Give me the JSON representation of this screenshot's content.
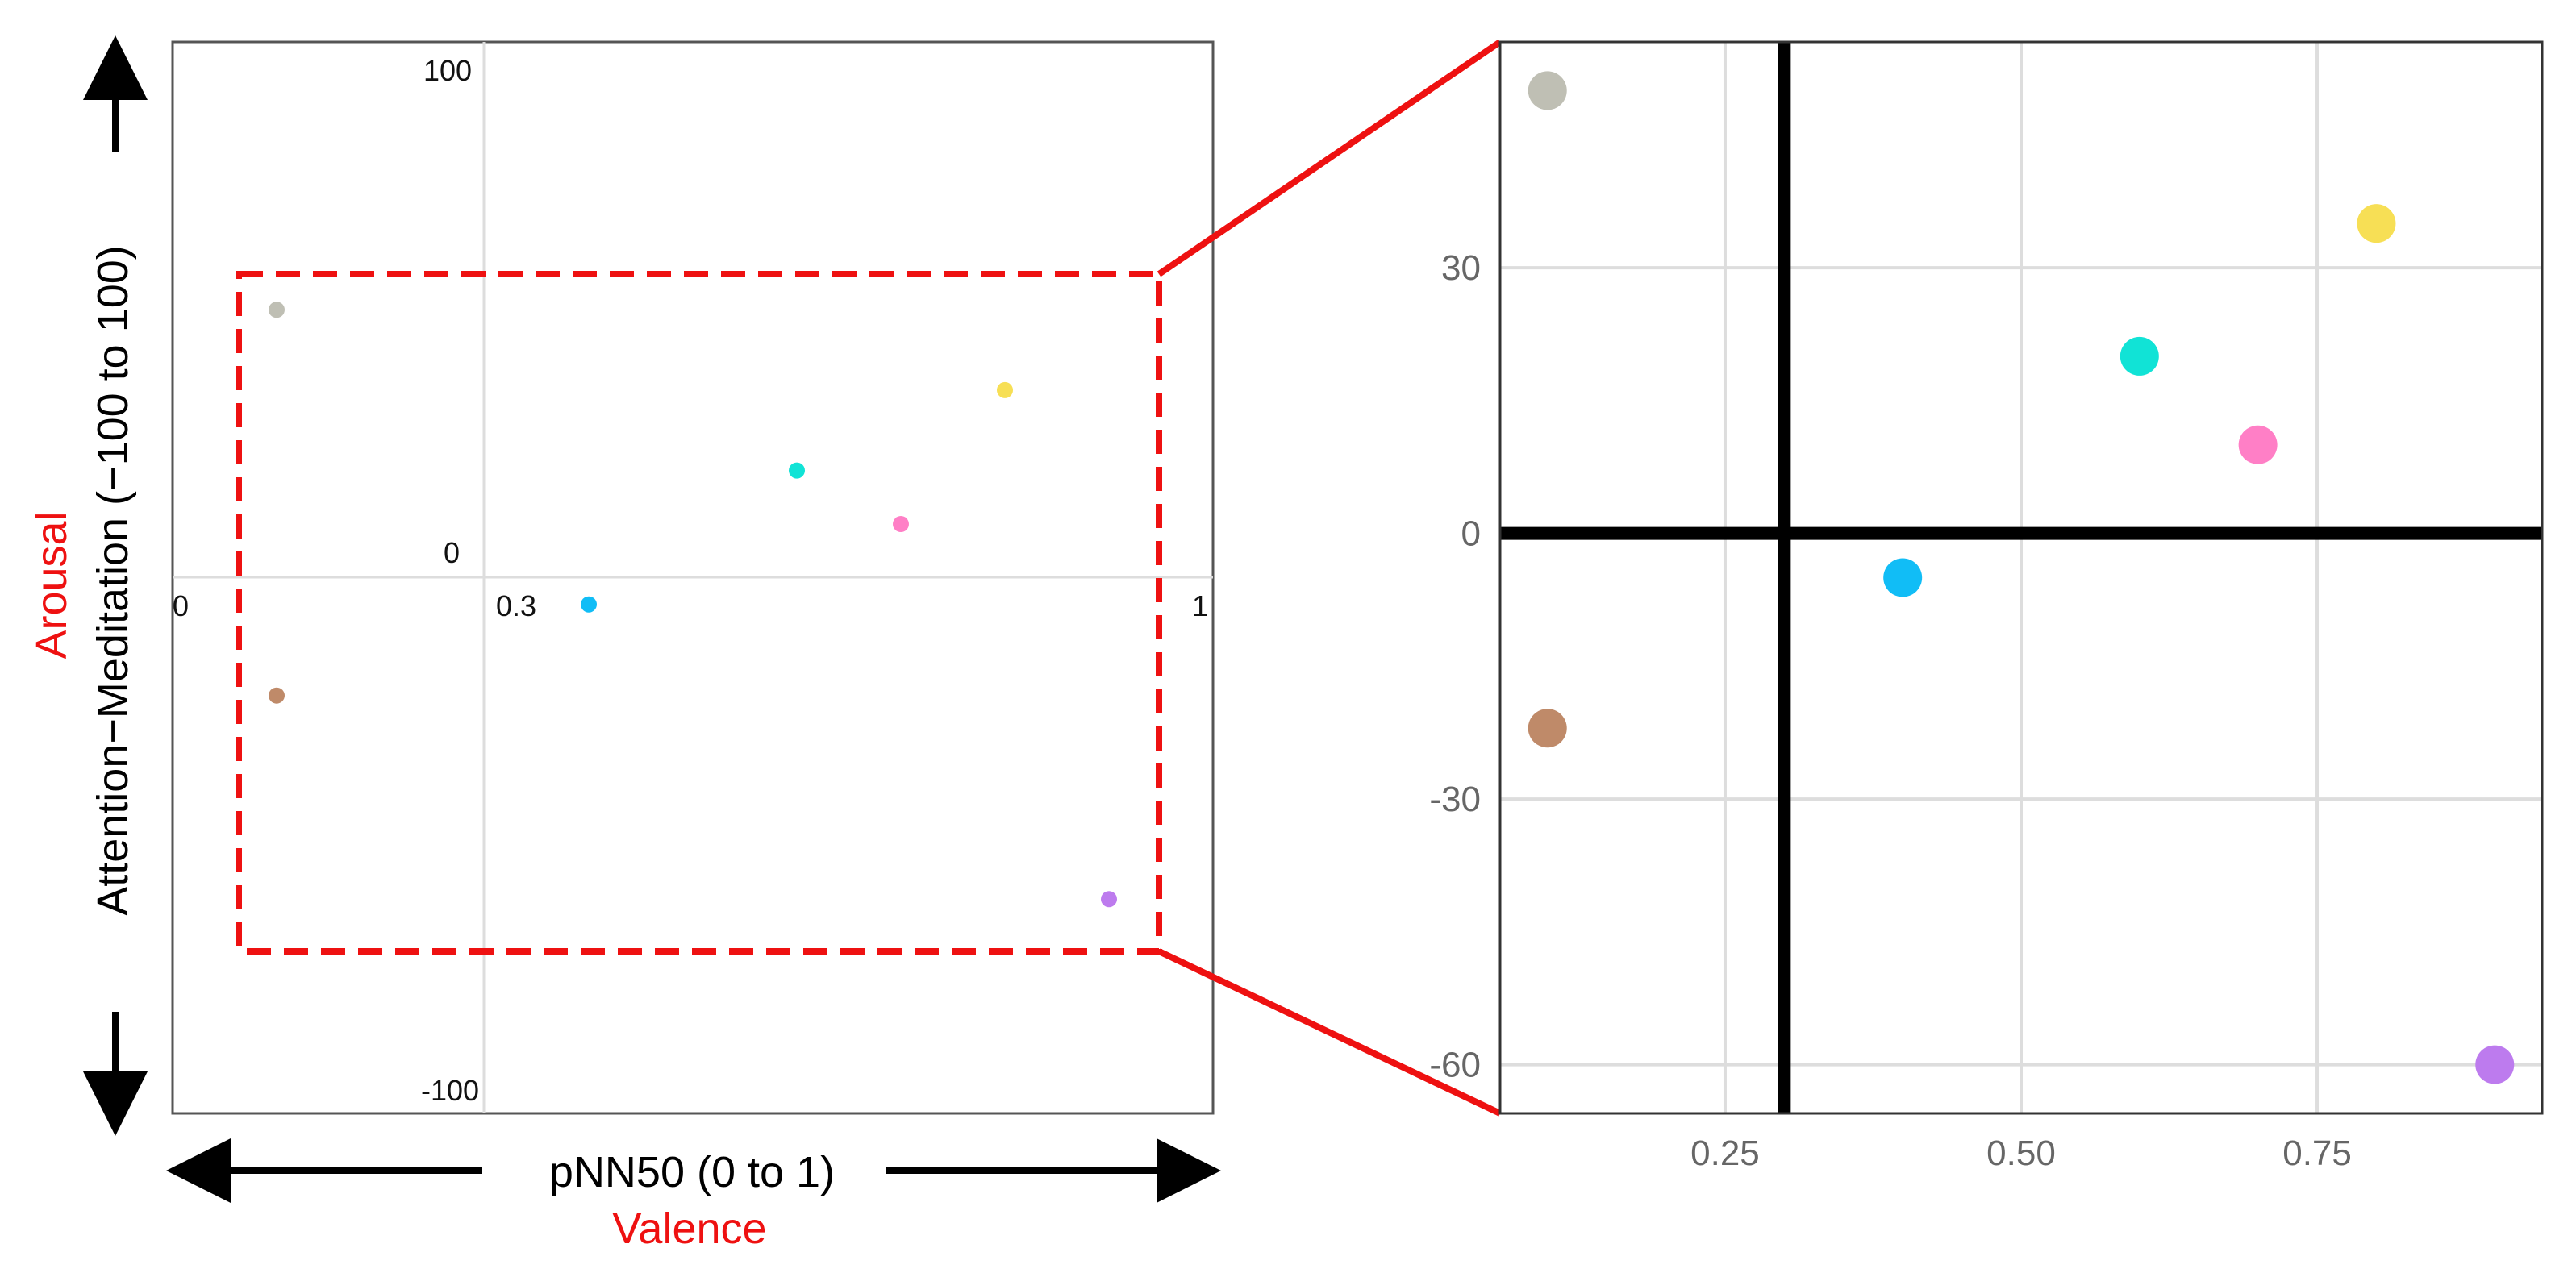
{
  "colors": {
    "callout": "#ee1111",
    "frame": "#555555",
    "grid": "#dddddd",
    "axis_strong": "#000000",
    "point_colors": {
      "gray": "#bfbfb4",
      "yellow": "#f7df55",
      "cyan": "#11e3d6",
      "pink": "#ff7fc6",
      "blue": "#11bdf6",
      "brown": "#bf8a69",
      "purple": "#bd7bee"
    }
  },
  "left_panel": {
    "tick_labels": {
      "y_top": "100",
      "y_mid": "0",
      "y_bottom": "-100",
      "x_left": "0",
      "x_mid": "0.3",
      "x_right": "1"
    },
    "y_axis_title": "Attention−Meditation (−100 to 100)",
    "y_axis_concept": "Arousal",
    "x_axis_title": "pNN50 (0 to 1)",
    "x_axis_concept": "Valence"
  },
  "chart_data": [
    {
      "type": "scatter",
      "panel": "overview",
      "xlim": [
        0,
        1
      ],
      "ylim": [
        -100,
        100
      ],
      "x_tick_labels": [
        "0",
        "0.3",
        "1"
      ],
      "y_tick_labels": [
        "100",
        "0",
        "-100"
      ],
      "xlabel": "pNN50 (0 to 1)",
      "ylabel": "Attention−Meditation (−100 to 100)",
      "reference_lines": {
        "x": 0.3,
        "y": 0
      },
      "zoom_region": {
        "xlim": [
          0.06,
          0.94
        ],
        "ylim": [
          -70,
          57
        ]
      },
      "points": [
        {
          "x": 0.1,
          "y": 50,
          "color": "gray"
        },
        {
          "x": 0.8,
          "y": 35,
          "color": "yellow"
        },
        {
          "x": 0.6,
          "y": 20,
          "color": "cyan"
        },
        {
          "x": 0.7,
          "y": 10,
          "color": "pink"
        },
        {
          "x": 0.4,
          "y": -5,
          "color": "blue"
        },
        {
          "x": 0.1,
          "y": -22,
          "color": "brown"
        },
        {
          "x": 0.9,
          "y": -60,
          "color": "purple"
        }
      ]
    },
    {
      "type": "scatter",
      "panel": "zoomed",
      "xlim": [
        0.06,
        0.94
      ],
      "ylim": [
        -65.5,
        55.5
      ],
      "x_ticks": [
        0.25,
        0.5,
        0.75
      ],
      "x_tick_labels": [
        "0.25",
        "0.50",
        "0.75"
      ],
      "y_ticks": [
        30,
        0,
        -30,
        -60
      ],
      "y_tick_labels": [
        "30",
        "0",
        "-30",
        "-60"
      ],
      "grid": true,
      "reference_lines": {
        "x": 0.3,
        "y": 0
      },
      "points": [
        {
          "x": 0.1,
          "y": 50,
          "color": "gray"
        },
        {
          "x": 0.8,
          "y": 35,
          "color": "yellow"
        },
        {
          "x": 0.6,
          "y": 20,
          "color": "cyan"
        },
        {
          "x": 0.7,
          "y": 10,
          "color": "pink"
        },
        {
          "x": 0.4,
          "y": -5,
          "color": "blue"
        },
        {
          "x": 0.1,
          "y": -22,
          "color": "brown"
        },
        {
          "x": 0.9,
          "y": -60,
          "color": "purple"
        }
      ]
    }
  ]
}
